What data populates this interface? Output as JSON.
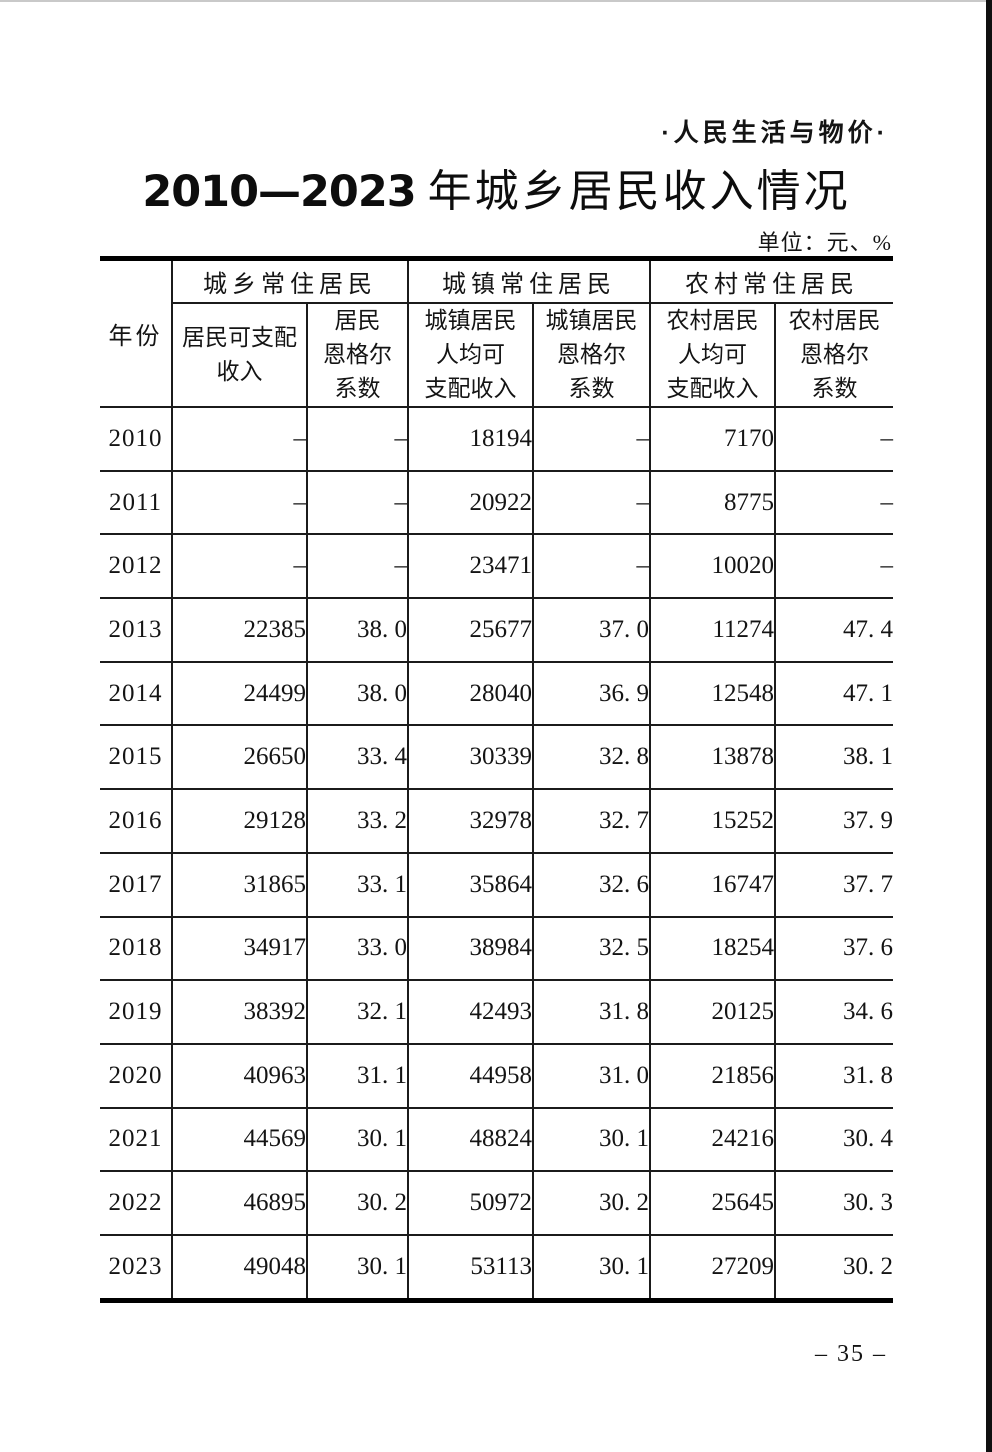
{
  "page": {
    "section_header": "·人民生活与物价·",
    "title": {
      "prefix": "2010—2023",
      "suffix": "年城乡居民收入情况"
    },
    "unit_note": "单位：元、%",
    "page_number": "– 35 –"
  },
  "table": {
    "corner_header": "年份",
    "groups": [
      {
        "label": "城乡常住居民",
        "sub_columns": [
          "居民可支配\n收入",
          "居民\n恩格尔\n系数"
        ]
      },
      {
        "label": "城镇常住居民",
        "sub_columns": [
          "城镇居民\n人均可\n支配收入",
          "城镇居民\n恩格尔\n系数"
        ]
      },
      {
        "label": "农村常住居民",
        "sub_columns": [
          "农村居民\n人均可\n支配收入",
          "农村居民\n恩格尔\n系数"
        ]
      }
    ],
    "rows": [
      {
        "year": "2010",
        "values": [
          "–",
          "–",
          "18194",
          "–",
          "7170",
          "–"
        ]
      },
      {
        "year": "2011",
        "values": [
          "–",
          "–",
          "20922",
          "–",
          "8775",
          "–"
        ]
      },
      {
        "year": "2012",
        "values": [
          "–",
          "–",
          "23471",
          "–",
          "10020",
          "–"
        ]
      },
      {
        "year": "2013",
        "values": [
          "22385",
          "38. 0",
          "25677",
          "37. 0",
          "11274",
          "47. 4"
        ]
      },
      {
        "year": "2014",
        "values": [
          "24499",
          "38. 0",
          "28040",
          "36. 9",
          "12548",
          "47. 1"
        ]
      },
      {
        "year": "2015",
        "values": [
          "26650",
          "33. 4",
          "30339",
          "32. 8",
          "13878",
          "38. 1"
        ]
      },
      {
        "year": "2016",
        "values": [
          "29128",
          "33. 2",
          "32978",
          "32. 7",
          "15252",
          "37. 9"
        ]
      },
      {
        "year": "2017",
        "values": [
          "31865",
          "33. 1",
          "35864",
          "32. 6",
          "16747",
          "37. 7"
        ]
      },
      {
        "year": "2018",
        "values": [
          "34917",
          "33. 0",
          "38984",
          "32. 5",
          "18254",
          "37. 6"
        ]
      },
      {
        "year": "2019",
        "values": [
          "38392",
          "32. 1",
          "42493",
          "31. 8",
          "20125",
          "34. 6"
        ]
      },
      {
        "year": "2020",
        "values": [
          "40963",
          "31. 1",
          "44958",
          "31. 0",
          "21856",
          "31. 8"
        ]
      },
      {
        "year": "2021",
        "values": [
          "44569",
          "30. 1",
          "48824",
          "30. 1",
          "24216",
          "30. 4"
        ]
      },
      {
        "year": "2022",
        "values": [
          "46895",
          "30. 2",
          "50972",
          "30. 2",
          "25645",
          "30. 3"
        ]
      },
      {
        "year": "2023",
        "values": [
          "49048",
          "30. 1",
          "53113",
          "30. 1",
          "27209",
          "30. 2"
        ]
      }
    ]
  }
}
